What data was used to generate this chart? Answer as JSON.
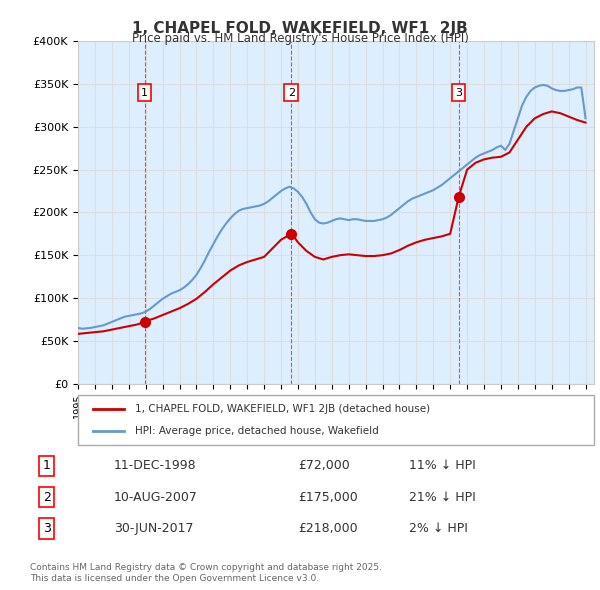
{
  "title": "1, CHAPEL FOLD, WAKEFIELD, WF1  2JB",
  "subtitle": "Price paid vs. HM Land Registry's House Price Index (HPI)",
  "ylim": [
    0,
    400000
  ],
  "xlim_start": 1995.0,
  "xlim_end": 2025.5,
  "yticks": [
    0,
    50000,
    100000,
    150000,
    200000,
    250000,
    300000,
    350000,
    400000
  ],
  "ytick_labels": [
    "£0",
    "£50K",
    "£100K",
    "£150K",
    "£200K",
    "£250K",
    "£300K",
    "£350K",
    "£400K"
  ],
  "sales": [
    {
      "label": "1",
      "date": "11-DEC-1998",
      "price": 72000,
      "year": 1998.94,
      "pct": "11%",
      "dir": "↓"
    },
    {
      "label": "2",
      "date": "10-AUG-2007",
      "price": 175000,
      "year": 2007.61,
      "pct": "21%",
      "dir": "↓"
    },
    {
      "label": "3",
      "date": "30-JUN-2017",
      "price": 218000,
      "year": 2017.5,
      "pct": "2%",
      "dir": "↓"
    }
  ],
  "red_line_color": "#cc0000",
  "blue_line_color": "#6699cc",
  "grid_color": "#dddddd",
  "background_color": "#ddeeff",
  "plot_bg_color": "#ddeeff",
  "legend_label_red": "1, CHAPEL FOLD, WAKEFIELD, WF1 2JB (detached house)",
  "legend_label_blue": "HPI: Average price, detached house, Wakefield",
  "footer": "Contains HM Land Registry data © Crown copyright and database right 2025.\nThis data is licensed under the Open Government Licence v3.0.",
  "hpi_data": {
    "years": [
      1995.0,
      1995.25,
      1995.5,
      1995.75,
      1996.0,
      1996.25,
      1996.5,
      1996.75,
      1997.0,
      1997.25,
      1997.5,
      1997.75,
      1998.0,
      1998.25,
      1998.5,
      1998.75,
      1999.0,
      1999.25,
      1999.5,
      1999.75,
      2000.0,
      2000.25,
      2000.5,
      2000.75,
      2001.0,
      2001.25,
      2001.5,
      2001.75,
      2002.0,
      2002.25,
      2002.5,
      2002.75,
      2003.0,
      2003.25,
      2003.5,
      2003.75,
      2004.0,
      2004.25,
      2004.5,
      2004.75,
      2005.0,
      2005.25,
      2005.5,
      2005.75,
      2006.0,
      2006.25,
      2006.5,
      2006.75,
      2007.0,
      2007.25,
      2007.5,
      2007.75,
      2008.0,
      2008.25,
      2008.5,
      2008.75,
      2009.0,
      2009.25,
      2009.5,
      2009.75,
      2010.0,
      2010.25,
      2010.5,
      2010.75,
      2011.0,
      2011.25,
      2011.5,
      2011.75,
      2012.0,
      2012.25,
      2012.5,
      2012.75,
      2013.0,
      2013.25,
      2013.5,
      2013.75,
      2014.0,
      2014.25,
      2014.5,
      2014.75,
      2015.0,
      2015.25,
      2015.5,
      2015.75,
      2016.0,
      2016.25,
      2016.5,
      2016.75,
      2017.0,
      2017.25,
      2017.5,
      2017.75,
      2018.0,
      2018.25,
      2018.5,
      2018.75,
      2019.0,
      2019.25,
      2019.5,
      2019.75,
      2020.0,
      2020.25,
      2020.5,
      2020.75,
      2021.0,
      2021.25,
      2021.5,
      2021.75,
      2022.0,
      2022.25,
      2022.5,
      2022.75,
      2023.0,
      2023.25,
      2023.5,
      2023.75,
      2024.0,
      2024.25,
      2024.5,
      2024.75,
      2025.0
    ],
    "values": [
      65000,
      64000,
      64500,
      65000,
      66000,
      67000,
      68000,
      70000,
      72000,
      74000,
      76000,
      78000,
      79000,
      80000,
      81000,
      82000,
      84000,
      87000,
      91000,
      95000,
      99000,
      102000,
      105000,
      107000,
      109000,
      112000,
      116000,
      121000,
      127000,
      135000,
      144000,
      154000,
      163000,
      172000,
      180000,
      187000,
      193000,
      198000,
      202000,
      204000,
      205000,
      206000,
      207000,
      208000,
      210000,
      213000,
      217000,
      221000,
      225000,
      228000,
      230000,
      228000,
      224000,
      218000,
      210000,
      200000,
      192000,
      188000,
      187000,
      188000,
      190000,
      192000,
      193000,
      192000,
      191000,
      192000,
      192000,
      191000,
      190000,
      190000,
      190000,
      191000,
      192000,
      194000,
      197000,
      201000,
      205000,
      209000,
      213000,
      216000,
      218000,
      220000,
      222000,
      224000,
      226000,
      229000,
      232000,
      236000,
      240000,
      244000,
      248000,
      252000,
      256000,
      260000,
      264000,
      267000,
      269000,
      271000,
      273000,
      276000,
      278000,
      273000,
      280000,
      295000,
      310000,
      325000,
      335000,
      342000,
      346000,
      348000,
      349000,
      348000,
      345000,
      343000,
      342000,
      342000,
      343000,
      344000,
      346000,
      346000,
      310000
    ]
  },
  "red_data": {
    "years": [
      1995.0,
      1995.5,
      1996.0,
      1996.5,
      1997.0,
      1997.5,
      1998.0,
      1998.5,
      1998.94,
      1999.0,
      1999.5,
      2000.0,
      2000.5,
      2001.0,
      2001.5,
      2002.0,
      2002.5,
      2003.0,
      2003.5,
      2004.0,
      2004.5,
      2005.0,
      2005.5,
      2006.0,
      2006.5,
      2007.0,
      2007.61,
      2007.75,
      2008.0,
      2008.5,
      2009.0,
      2009.5,
      2010.0,
      2010.5,
      2011.0,
      2011.5,
      2012.0,
      2012.5,
      2013.0,
      2013.5,
      2014.0,
      2014.5,
      2015.0,
      2015.5,
      2016.0,
      2016.5,
      2017.0,
      2017.5,
      2018.0,
      2018.5,
      2019.0,
      2019.5,
      2020.0,
      2020.5,
      2021.0,
      2021.5,
      2022.0,
      2022.5,
      2023.0,
      2023.5,
      2024.0,
      2024.5,
      2025.0
    ],
    "values": [
      58000,
      59000,
      60000,
      61000,
      63000,
      65000,
      67000,
      69000,
      72000,
      73000,
      76000,
      80000,
      84000,
      88000,
      93000,
      99000,
      107000,
      116000,
      124000,
      132000,
      138000,
      142000,
      145000,
      148000,
      158000,
      168000,
      175000,
      172000,
      165000,
      155000,
      148000,
      145000,
      148000,
      150000,
      151000,
      150000,
      149000,
      149000,
      150000,
      152000,
      156000,
      161000,
      165000,
      168000,
      170000,
      172000,
      175000,
      218000,
      250000,
      258000,
      262000,
      264000,
      265000,
      270000,
      285000,
      300000,
      310000,
      315000,
      318000,
      316000,
      312000,
      308000,
      305000
    ]
  }
}
